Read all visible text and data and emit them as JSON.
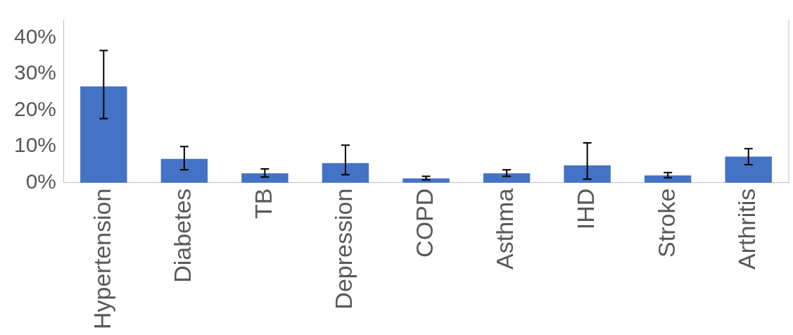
{
  "chart_data": {
    "type": "bar",
    "categories": [
      "Hypertension",
      "Diabetes",
      "TB",
      "Depression",
      "COPD",
      "Asthma",
      "IHD",
      "Stroke",
      "Arthritis"
    ],
    "values": [
      26.6,
      6.6,
      2.6,
      5.4,
      1.2,
      2.6,
      4.8,
      2.0,
      7.2
    ],
    "errors": [
      [
        17.7,
        36.5
      ],
      [
        3.6,
        10
      ],
      [
        1.6,
        3.8
      ],
      [
        2.2,
        10.4
      ],
      [
        0.8,
        1.8
      ],
      [
        1.8,
        3.6
      ],
      [
        1.0,
        11
      ],
      [
        1.4,
        2.8
      ],
      [
        5.0,
        9.4
      ]
    ],
    "color": "#4472c4",
    "ylim": [
      0,
      45
    ],
    "yticks": [
      {
        "value": 0,
        "label": "0%"
      },
      {
        "value": 10,
        "label": "10%"
      },
      {
        "value": 20,
        "label": "20%"
      },
      {
        "value": 30,
        "label": "30%"
      },
      {
        "value": 40,
        "label": "40%"
      }
    ],
    "grid": false,
    "legend": false
  }
}
